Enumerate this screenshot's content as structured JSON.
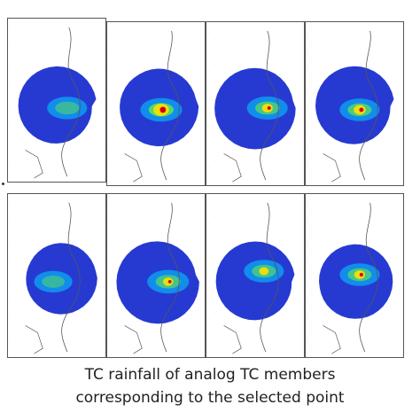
{
  "caption": {
    "line1": "TC rainfall of analog TC members",
    "line2": "corresponding to the selected point"
  },
  "panel_count": 8,
  "colors": {
    "rain_low": "#1a2fd0",
    "rain_mid": "#00d2ff",
    "rain_green": "#5ce05c",
    "rain_high": "#ffe000",
    "rain_peak": "#d40000",
    "coast": "#555555",
    "frame": "#555555"
  }
}
